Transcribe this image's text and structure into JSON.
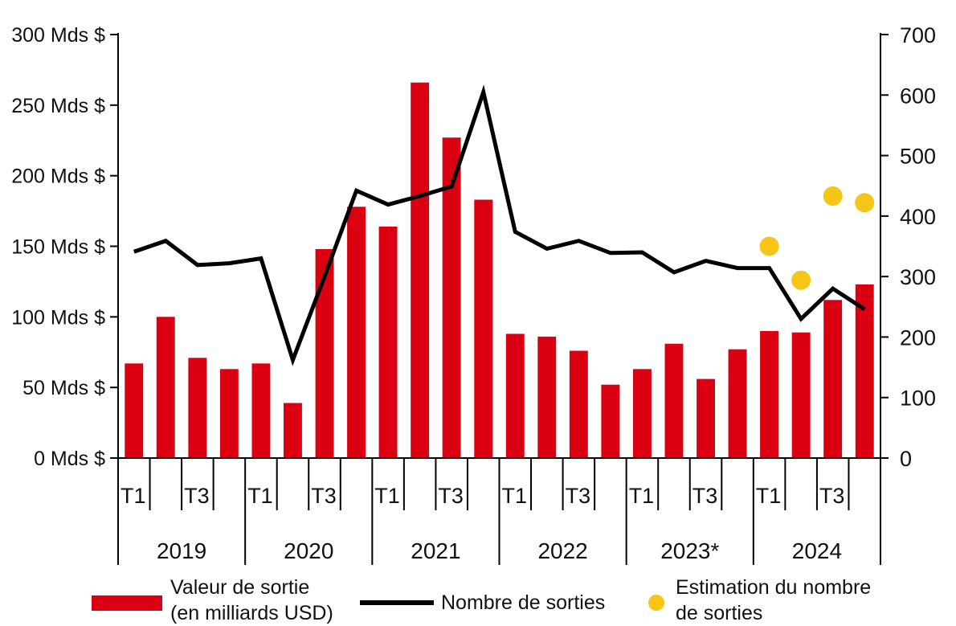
{
  "chart_data": {
    "type": "bar",
    "title": "",
    "categories": [
      "2019 T1",
      "2019 T2",
      "2019 T3",
      "2019 T4",
      "2020 T1",
      "2020 T2",
      "2020 T3",
      "2020 T4",
      "2021 T1",
      "2021 T2",
      "2021 T3",
      "2021 T4",
      "2022 T1",
      "2022 T2",
      "2022 T3",
      "2022 T4",
      "2023 T1",
      "2023 T2",
      "2023 T3",
      "2023 T4",
      "2024 T1",
      "2024 T2",
      "2024 T3",
      "2024 T4"
    ],
    "quarter_labels": [
      "T1",
      "",
      "T3",
      "",
      "T1",
      "",
      "T3",
      "",
      "T1",
      "",
      "T3",
      "",
      "T1",
      "",
      "T3",
      "",
      "T1",
      "",
      "T3",
      "",
      "T1",
      "",
      "T3",
      ""
    ],
    "years": [
      "2019",
      "2020",
      "2021",
      "2022",
      "2023*",
      "2024"
    ],
    "series": [
      {
        "name": "Valeur de sortie (en milliards USD)",
        "type": "bar",
        "axis": "left",
        "color": "#db0011",
        "values": [
          67,
          100,
          71,
          63,
          67,
          39,
          148,
          178,
          164,
          266,
          227,
          183,
          88,
          86,
          76,
          52,
          63,
          81,
          56,
          77,
          90,
          89,
          112,
          123
        ]
      },
      {
        "name": "Nombre de sorties",
        "type": "line",
        "axis": "right",
        "color": "#000000",
        "values": [
          341,
          359,
          319,
          322,
          330,
          162,
          300,
          442,
          419,
          433,
          449,
          605,
          374,
          346,
          359,
          339,
          340,
          307,
          326,
          314,
          314,
          230,
          280,
          246
        ]
      },
      {
        "name": "Estimation du nombre de sorties",
        "type": "scatter",
        "axis": "right",
        "color": "#f5c518",
        "points": [
          {
            "category": "2024 T1",
            "value": 350
          },
          {
            "category": "2024 T2",
            "value": 294
          },
          {
            "category": "2024 T3",
            "value": 433
          },
          {
            "category": "2024 T4",
            "value": 422
          }
        ]
      }
    ],
    "y_left": {
      "range": [
        0,
        300
      ],
      "ticks": [
        0,
        50,
        100,
        150,
        200,
        250,
        300
      ],
      "tick_labels": [
        "0 Mds $",
        "50 Mds $",
        "100 Mds $",
        "150 Mds $",
        "200 Mds $",
        "250 Mds $",
        "300 Mds $"
      ]
    },
    "y_right": {
      "range": [
        0,
        700
      ],
      "ticks": [
        0,
        100,
        200,
        300,
        400,
        500,
        600,
        700
      ],
      "tick_labels": [
        "0",
        "100",
        "200",
        "300",
        "400",
        "500",
        "600",
        "700"
      ]
    },
    "grid": false,
    "legend_position": "bottom"
  },
  "legend": {
    "bar_line1": "Valeur de sortie",
    "bar_line2": "(en milliards USD)",
    "line_label": "Nombre de sorties",
    "dot_line1": "Estimation du nombre",
    "dot_line2": "de sorties"
  }
}
